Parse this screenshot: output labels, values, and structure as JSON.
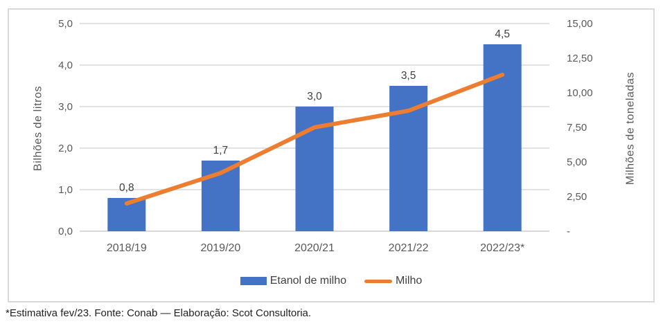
{
  "chart_data": {
    "type": "bar+line",
    "categories": [
      "2018/19",
      "2019/20",
      "2020/21",
      "2021/22",
      "2022/23*"
    ],
    "series": [
      {
        "name": "Etanol de milho",
        "type": "bar",
        "axis": "left",
        "values": [
          0.8,
          1.7,
          3.0,
          3.5,
          4.5
        ],
        "value_labels": [
          "0,8",
          "1,7",
          "3,0",
          "3,5",
          "4,5"
        ],
        "color": "#4472C4"
      },
      {
        "name": "Milho",
        "type": "line",
        "axis": "right",
        "values": [
          2.0,
          4.2,
          7.5,
          8.7,
          11.3
        ],
        "color": "#ED7D31"
      }
    ],
    "left_axis": {
      "title": "Bilhões de litros",
      "min": 0,
      "max": 5,
      "tick_step": 1,
      "tick_labels": [
        "0,0",
        "1,0",
        "2,0",
        "3,0",
        "4,0",
        "5,0"
      ]
    },
    "right_axis": {
      "title": "Milhões de toneladas",
      "min": 0,
      "max": 15,
      "tick_step": 2.5,
      "tick_labels": [
        "-",
        "2,50",
        "5,00",
        "7,50",
        "10,00",
        "12,50",
        "15,00"
      ]
    },
    "grid": true,
    "legend_position": "bottom"
  },
  "footnote": {
    "text": "*Estimativa fev/23. Fonte: Conab — Elaboração: Scot Consultoria."
  },
  "colors": {
    "bar": "#4472C4",
    "line": "#ED7D31",
    "grid": "#D9D9D9",
    "axis_text": "#595959",
    "data_label": "#404040",
    "frame_border": "#D9D9D9",
    "footnote_text": "#1F1F1F",
    "background": "#FFFFFF"
  }
}
